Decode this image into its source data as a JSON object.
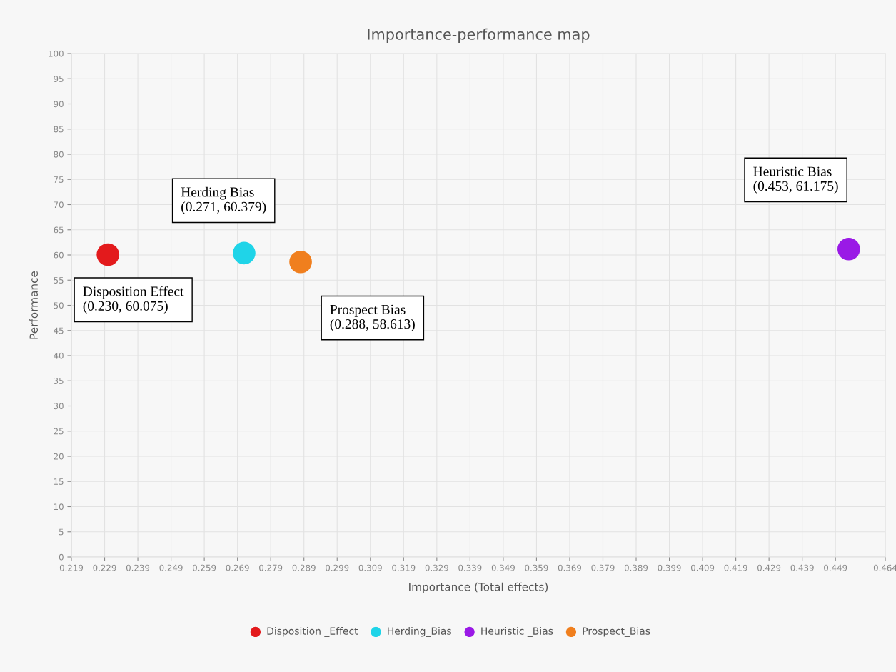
{
  "chart_data": {
    "type": "scatter",
    "title": "Importance-performance map",
    "xlabel": "Importance (Total effects)",
    "ylabel": "Performance",
    "series": [
      {
        "name": "Disposition _Effect",
        "color": "#e31a1c",
        "x": [
          0.23
        ],
        "values": [
          60.075
        ]
      },
      {
        "name": "Herding_Bias",
        "color": "#1fd4e8",
        "x": [
          0.271
        ],
        "values": [
          60.379
        ]
      },
      {
        "name": "Heuristic _Bias",
        "color": "#9a19e6",
        "x": [
          0.453
        ],
        "values": [
          61.175
        ]
      },
      {
        "name": "Prospect_Bias",
        "color": "#f07f1e",
        "x": [
          0.288
        ],
        "values": [
          58.613
        ]
      }
    ],
    "annotations": [
      "Disposition Effect\n(0.230, 60.075)",
      "Herding Bias\n(0.271, 60.379)",
      "Heuristic Bias\n(0.453, 61.175)",
      "Prospect Bias\n(0.288, 58.613)"
    ],
    "xlim": [
      0.219,
      0.464
    ],
    "ylim": [
      0,
      100
    ],
    "xticks": [
      0.219,
      0.229,
      0.239,
      0.249,
      0.259,
      0.269,
      0.279,
      0.289,
      0.299,
      0.309,
      0.319,
      0.329,
      0.339,
      0.349,
      0.359,
      0.369,
      0.379,
      0.389,
      0.399,
      0.409,
      0.419,
      0.429,
      0.439,
      0.449,
      0.464
    ],
    "yticks": [
      0,
      5,
      10,
      15,
      20,
      25,
      30,
      35,
      40,
      45,
      50,
      55,
      60,
      65,
      70,
      75,
      80,
      85,
      90,
      95,
      100
    ],
    "grid": true,
    "legend": "bottom",
    "marker": "circle"
  }
}
